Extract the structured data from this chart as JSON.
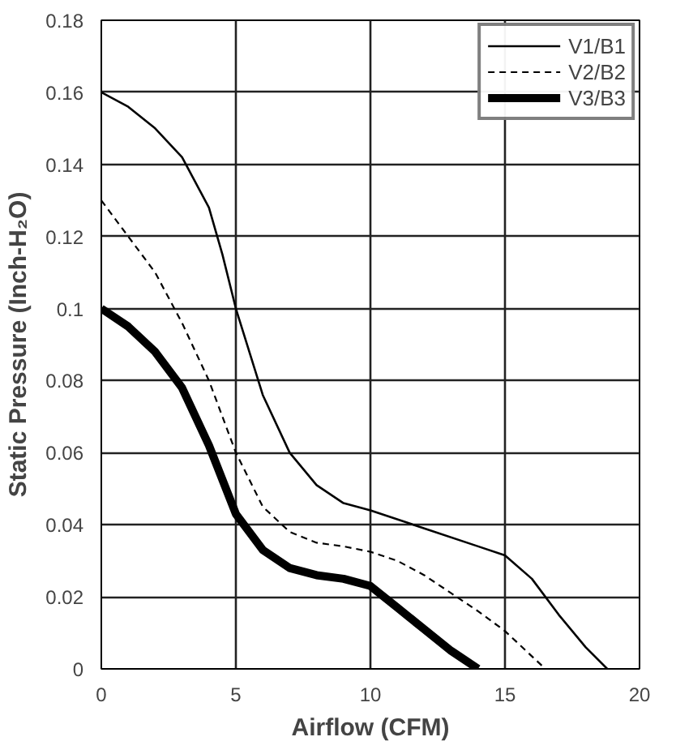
{
  "chart_data": {
    "type": "line",
    "xlabel": "Airflow (CFM)",
    "ylabel": "Static Pressure (Inch-H₂O)",
    "xlim": [
      0,
      20
    ],
    "ylim": [
      0,
      0.18
    ],
    "xticks": [
      0,
      5,
      10,
      15,
      20
    ],
    "yticks": [
      0,
      0.02,
      0.04,
      0.06,
      0.08,
      0.1,
      0.12,
      0.14,
      0.16,
      0.18
    ],
    "grid": true,
    "legend": "top right",
    "marker": "none",
    "series": [
      {
        "name": "V1/B1",
        "color": "#000000",
        "line_style": "solid",
        "x": [
          0,
          1,
          2,
          3,
          4,
          4.5,
          5,
          6,
          7,
          8,
          9,
          10,
          12,
          14,
          15,
          16,
          17,
          18,
          18.8
        ],
        "values": [
          0.16,
          0.156,
          0.15,
          0.142,
          0.128,
          0.115,
          0.1,
          0.076,
          0.06,
          0.051,
          0.046,
          0.044,
          0.039,
          0.034,
          0.0315,
          0.025,
          0.015,
          0.006,
          0
        ]
      },
      {
        "name": "V2/B2",
        "color": "#000000",
        "line_style": "dashed",
        "x": [
          0,
          1,
          2,
          3,
          4,
          5,
          6,
          7,
          8,
          9,
          10,
          11,
          12,
          13,
          14,
          15,
          16.5
        ],
        "values": [
          0.13,
          0.12,
          0.11,
          0.096,
          0.08,
          0.06,
          0.045,
          0.038,
          0.035,
          0.034,
          0.0325,
          0.03,
          0.026,
          0.021,
          0.016,
          0.0105,
          0
        ]
      },
      {
        "name": "V3/B3",
        "color": "#000000",
        "line_style": "solid",
        "x": [
          0,
          1,
          2,
          3,
          4,
          5,
          6,
          7,
          8,
          9,
          10,
          11,
          12,
          13,
          14
        ],
        "values": [
          0.1,
          0.095,
          0.088,
          0.078,
          0.062,
          0.043,
          0.033,
          0.028,
          0.026,
          0.025,
          0.023,
          0.017,
          0.011,
          0.005,
          0
        ]
      }
    ]
  }
}
